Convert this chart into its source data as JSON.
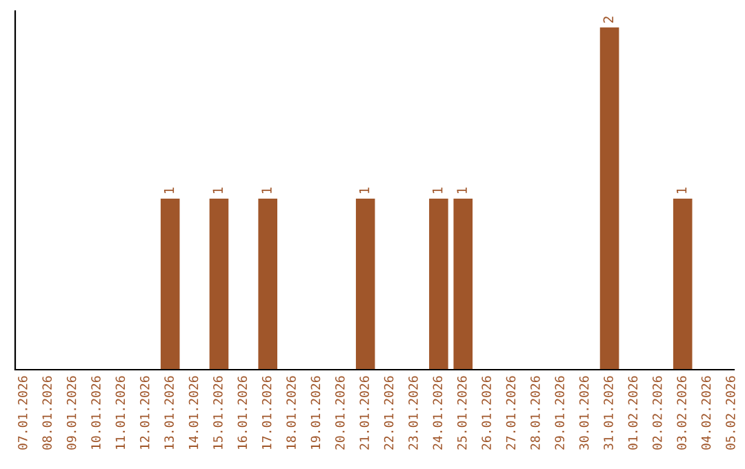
{
  "chart_data": {
    "type": "bar",
    "categories": [
      "07.01.2026",
      "08.01.2026",
      "09.01.2026",
      "10.01.2026",
      "11.01.2026",
      "12.01.2026",
      "13.01.2026",
      "14.01.2026",
      "15.01.2026",
      "16.01.2026",
      "17.01.2026",
      "18.01.2026",
      "19.01.2026",
      "20.01.2026",
      "21.01.2026",
      "22.01.2026",
      "23.01.2026",
      "24.01.2026",
      "25.01.2026",
      "26.01.2026",
      "27.01.2026",
      "28.01.2026",
      "29.01.2026",
      "30.01.2026",
      "31.01.2026",
      "01.02.2026",
      "02.02.2026",
      "03.02.2026",
      "04.02.2026",
      "05.02.2026"
    ],
    "values": [
      0,
      0,
      0,
      0,
      0,
      0,
      1,
      0,
      1,
      0,
      1,
      0,
      0,
      0,
      1,
      0,
      0,
      1,
      1,
      0,
      0,
      0,
      0,
      0,
      2,
      0,
      0,
      1,
      0,
      0
    ],
    "value_labels": [
      null,
      null,
      null,
      null,
      null,
      null,
      "1",
      null,
      "1",
      null,
      "1",
      null,
      null,
      null,
      "1",
      null,
      null,
      "1",
      "1",
      null,
      null,
      null,
      null,
      null,
      "2",
      null,
      null,
      "1",
      null,
      null
    ],
    "color": "#a0562a",
    "tick_labels": "x",
    "grid": false
  }
}
